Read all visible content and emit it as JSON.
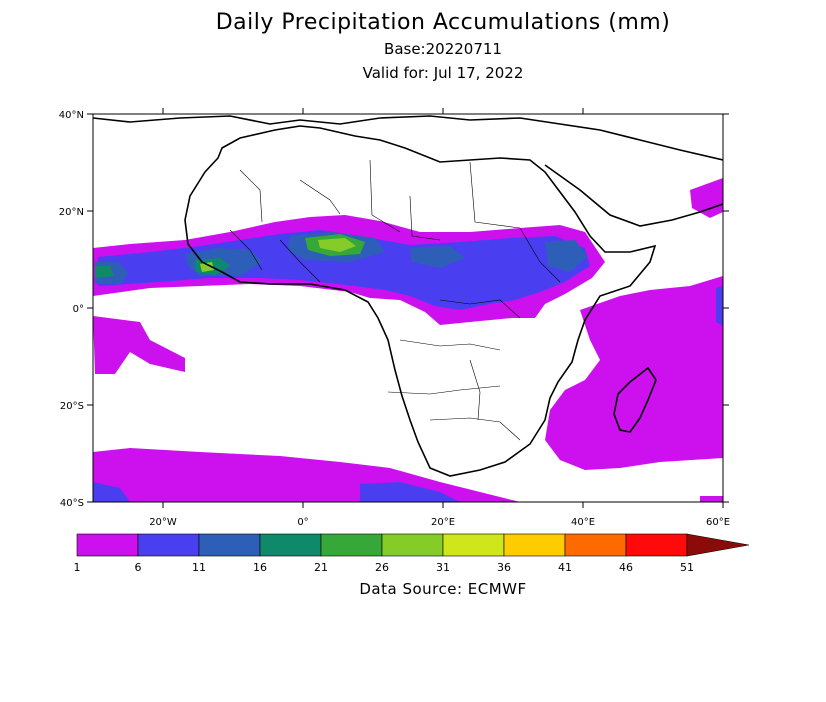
{
  "title": "Daily Precipitation Accumulations (mm)",
  "base": "Base:20220711",
  "valid": "Valid for: Jul 17, 2022",
  "source": "Data Source: ECMWF",
  "lat_labels": [
    "40°N",
    "20°N",
    "0°",
    "20°S",
    "40°S"
  ],
  "lon_labels": [
    "20°W",
    "0°",
    "20°E",
    "40°E",
    "60°E"
  ],
  "legend": {
    "values": [
      "1",
      "6",
      "11",
      "16",
      "21",
      "26",
      "31",
      "36",
      "41",
      "46",
      "51"
    ],
    "colors": [
      "#cc11ee",
      "#4a3ff0",
      "#2e5fb8",
      "#0e8a6a",
      "#36a83a",
      "#86cc28",
      "#cfe61a",
      "#ffcc00",
      "#ff6a00",
      "#ff0a0a",
      "#8b0b0b"
    ]
  }
}
